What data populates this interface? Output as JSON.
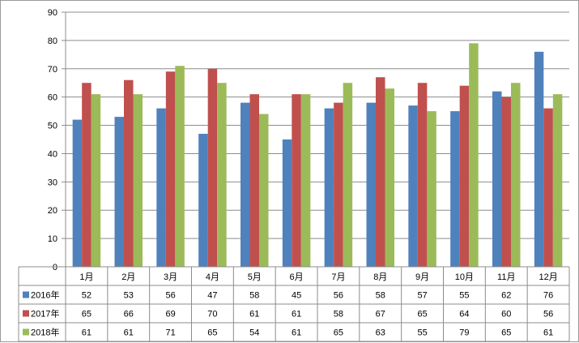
{
  "chart_data": {
    "type": "bar",
    "categories": [
      "1月",
      "2月",
      "3月",
      "4月",
      "5月",
      "6月",
      "7月",
      "8月",
      "9月",
      "10月",
      "11月",
      "12月"
    ],
    "series": [
      {
        "name": "2016年",
        "color": "#4f81bd",
        "values": [
          52,
          53,
          56,
          47,
          58,
          45,
          56,
          58,
          57,
          55,
          62,
          76
        ]
      },
      {
        "name": "2017年",
        "color": "#c0504d",
        "values": [
          65,
          66,
          69,
          70,
          61,
          61,
          58,
          67,
          65,
          64,
          60,
          56
        ]
      },
      {
        "name": "2018年",
        "color": "#9bbb59",
        "values": [
          61,
          61,
          71,
          65,
          54,
          61,
          65,
          63,
          55,
          79,
          65,
          61
        ]
      }
    ],
    "ylim": [
      0,
      90
    ],
    "yticks": [
      0,
      10,
      20,
      30,
      40,
      50,
      60,
      70,
      80,
      90
    ],
    "grid": true,
    "legend": "data-table-below"
  }
}
